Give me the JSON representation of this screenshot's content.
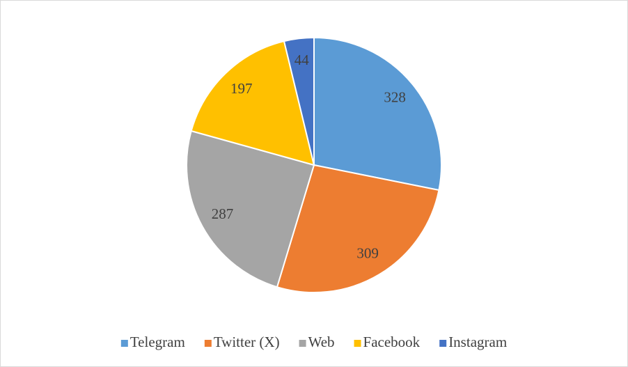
{
  "chart_data": {
    "type": "pie",
    "categories": [
      "Telegram",
      "Twitter (X)",
      "Web",
      "Facebook",
      "Instagram"
    ],
    "values": [
      328,
      309,
      287,
      197,
      44
    ],
    "colors": [
      "#5b9bd5",
      "#ed7d31",
      "#a5a5a5",
      "#ffc000",
      "#4472c4"
    ],
    "legend": "bottom"
  }
}
